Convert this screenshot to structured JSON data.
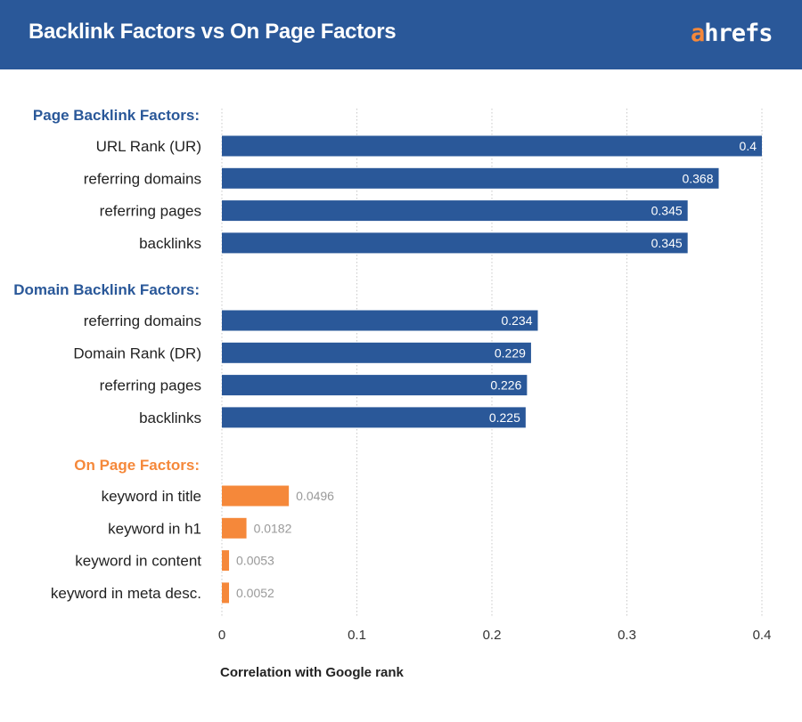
{
  "header": {
    "title": "Backlink Factors vs On Page Factors",
    "logo_accent": "a",
    "logo_rest": "hrefs"
  },
  "colors": {
    "header": "#2a5899",
    "backlink_bar": "#2a5899",
    "onpage_bar": "#f5883a",
    "onpage_label": "#f5883a",
    "group_label": "#2a5899"
  },
  "chart_data": {
    "type": "bar",
    "orientation": "horizontal",
    "xlabel": "Correlation with Google rank",
    "xlim": [
      0,
      0.4
    ],
    "xticks": [
      "0",
      "0.1",
      "0.2",
      "0.3",
      "0.4"
    ],
    "grid": "vertical dotted",
    "groups": [
      {
        "label": "Page Backlink Factors:",
        "color": "#2a5899",
        "categories": [
          "URL Rank (UR)",
          "referring domains",
          "referring pages",
          "backlinks"
        ],
        "values": [
          0.4,
          0.368,
          0.345,
          0.345
        ],
        "data_labels": [
          "0.4",
          "0.368",
          "0.345",
          "0.345"
        ]
      },
      {
        "label": "Domain Backlink Factors:",
        "color": "#2a5899",
        "categories": [
          "referring domains",
          "Domain Rank (DR)",
          "referring pages",
          "backlinks"
        ],
        "values": [
          0.234,
          0.229,
          0.226,
          0.225
        ],
        "data_labels": [
          "0.234",
          "0.229",
          "0.226",
          "0.225"
        ]
      },
      {
        "label": "On Page Factors:",
        "color": "#f5883a",
        "categories": [
          "keyword in title",
          "keyword in h1",
          "keyword in content",
          "keyword in meta desc."
        ],
        "values": [
          0.0496,
          0.0182,
          0.0053,
          0.0052
        ],
        "data_labels": [
          "0.0496",
          "0.0182",
          "0.0053",
          "0.0052"
        ]
      }
    ]
  }
}
